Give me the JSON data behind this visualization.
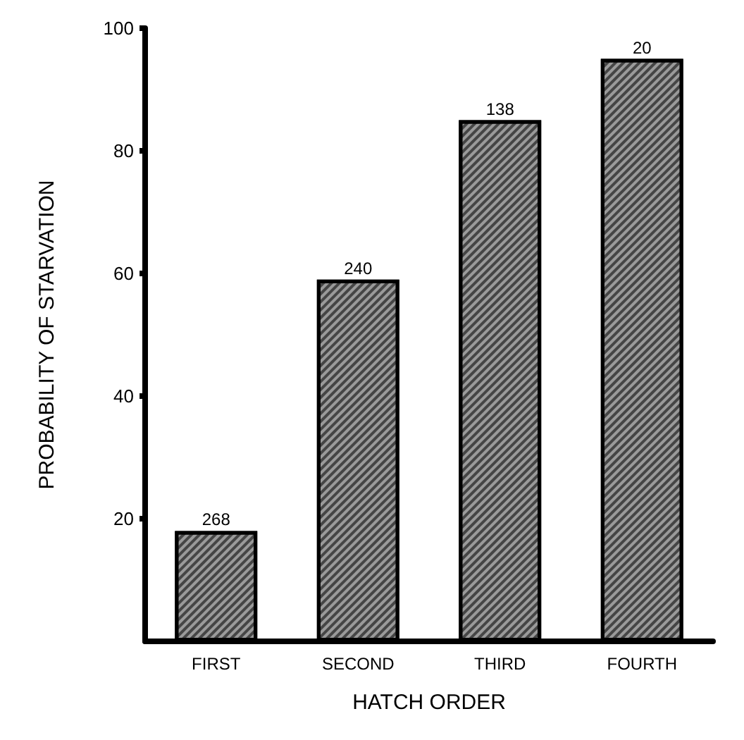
{
  "chart_data": {
    "type": "bar",
    "xlabel": "HATCH ORDER",
    "ylabel": "PROBABILITY OF STARVATION",
    "categories": [
      "FIRST",
      "SECOND",
      "THIRD",
      "FOURTH"
    ],
    "values": [
      18,
      59,
      85,
      95
    ],
    "annotations": [
      {
        "text": "268",
        "x": "FIRST",
        "y": 18
      },
      {
        "text": "240",
        "x": "SECOND",
        "y": 59
      },
      {
        "text": "138",
        "x": "THIRD",
        "y": 85
      },
      {
        "text": "20",
        "x": "FOURTH",
        "y": 95
      }
    ],
    "color": "#9a9a9a",
    "ylim": [
      0,
      100
    ],
    "yticks": [
      20,
      40,
      60,
      80,
      100
    ],
    "grid": false
  }
}
